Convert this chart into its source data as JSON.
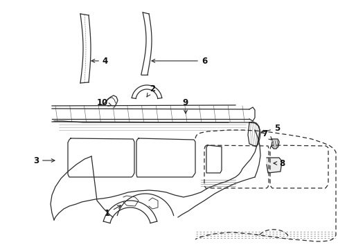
{
  "bg_color": "#ffffff",
  "line_color": "#2a2a2a",
  "figsize": [
    4.89,
    3.6
  ],
  "dpi": 100,
  "lw": 0.9,
  "label_fs": 8.5
}
